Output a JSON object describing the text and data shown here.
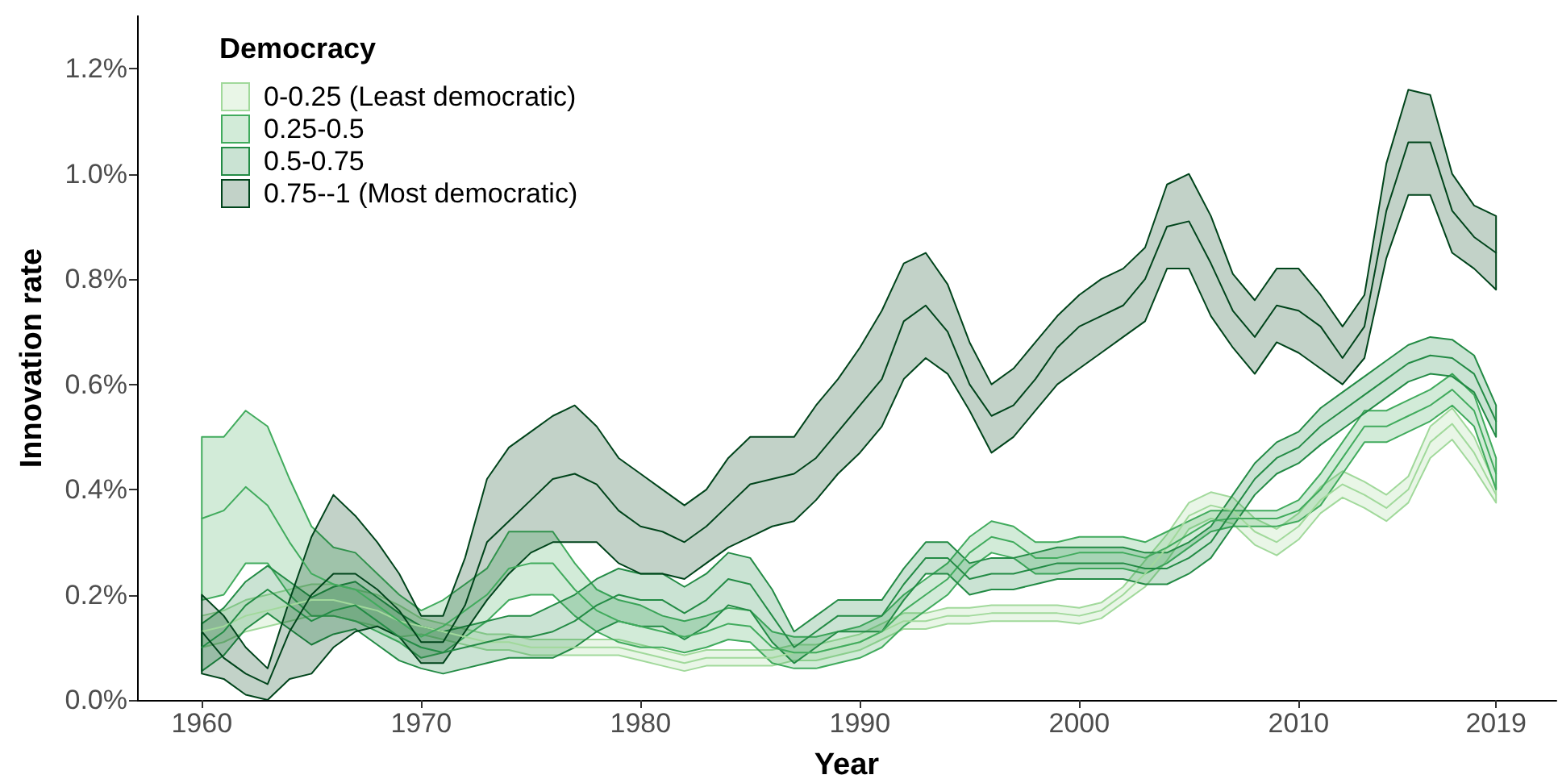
{
  "chart_data": {
    "type": "line",
    "xlabel": "Year",
    "ylabel": "Innovation rate",
    "legend_title": "Democracy",
    "x": [
      1960,
      1961,
      1962,
      1963,
      1964,
      1965,
      1966,
      1967,
      1968,
      1969,
      1970,
      1971,
      1972,
      1973,
      1974,
      1975,
      1976,
      1977,
      1978,
      1979,
      1980,
      1981,
      1982,
      1983,
      1984,
      1985,
      1986,
      1987,
      1988,
      1989,
      1990,
      1991,
      1992,
      1993,
      1994,
      1995,
      1996,
      1997,
      1998,
      1999,
      2000,
      2001,
      2002,
      2003,
      2004,
      2005,
      2006,
      2007,
      2008,
      2009,
      2010,
      2011,
      2012,
      2013,
      2014,
      2015,
      2016,
      2017,
      2018,
      2019
    ],
    "xlim": [
      1957.05,
      2021.75
    ],
    "xticks": [
      1960,
      1970,
      1980,
      1990,
      2000,
      2010,
      2019
    ],
    "ylim": [
      0,
      1.3
    ],
    "yticks": [
      {
        "value": 0,
        "label": "0.0%"
      },
      {
        "value": 0.2,
        "label": "0.2%"
      },
      {
        "value": 0.4,
        "label": "0.4%"
      },
      {
        "value": 0.6,
        "label": "0.6%"
      },
      {
        "value": 0.8,
        "label": "0.8%"
      },
      {
        "value": 1.0,
        "label": "1.0%"
      },
      {
        "value": 1.2,
        "label": "1.2%"
      }
    ],
    "grid": false,
    "legend": "top left",
    "marker": "none",
    "line_style": "solid",
    "series": [
      {
        "name": "0-0.25 (Least democratic)",
        "color": "#a1d99b",
        "values": [
          0.13,
          0.14,
          0.16,
          0.17,
          0.18,
          0.19,
          0.19,
          0.18,
          0.17,
          0.15,
          0.14,
          0.13,
          0.12,
          0.11,
          0.11,
          0.1,
          0.1,
          0.1,
          0.1,
          0.1,
          0.09,
          0.08,
          0.07,
          0.08,
          0.08,
          0.08,
          0.08,
          0.09,
          0.09,
          0.1,
          0.11,
          0.13,
          0.15,
          0.15,
          0.16,
          0.16,
          0.165,
          0.165,
          0.165,
          0.165,
          0.16,
          0.17,
          0.2,
          0.24,
          0.29,
          0.35,
          0.37,
          0.36,
          0.32,
          0.3,
          0.33,
          0.38,
          0.41,
          0.39,
          0.365,
          0.4,
          0.49,
          0.525,
          0.47,
          0.39
        ],
        "lower": [
          0.1,
          0.11,
          0.13,
          0.14,
          0.15,
          0.16,
          0.16,
          0.15,
          0.14,
          0.12,
          0.125,
          0.115,
          0.105,
          0.095,
          0.095,
          0.085,
          0.085,
          0.085,
          0.085,
          0.085,
          0.075,
          0.065,
          0.055,
          0.065,
          0.065,
          0.065,
          0.065,
          0.075,
          0.075,
          0.085,
          0.095,
          0.115,
          0.135,
          0.135,
          0.145,
          0.145,
          0.15,
          0.15,
          0.15,
          0.15,
          0.145,
          0.155,
          0.185,
          0.215,
          0.265,
          0.325,
          0.345,
          0.335,
          0.295,
          0.275,
          0.305,
          0.355,
          0.385,
          0.365,
          0.34,
          0.375,
          0.46,
          0.495,
          0.44,
          0.375
        ],
        "upper": [
          0.16,
          0.17,
          0.19,
          0.2,
          0.21,
          0.22,
          0.22,
          0.21,
          0.2,
          0.18,
          0.155,
          0.145,
          0.135,
          0.125,
          0.125,
          0.115,
          0.115,
          0.115,
          0.115,
          0.115,
          0.105,
          0.095,
          0.085,
          0.095,
          0.095,
          0.095,
          0.095,
          0.105,
          0.105,
          0.115,
          0.125,
          0.145,
          0.165,
          0.165,
          0.175,
          0.175,
          0.18,
          0.18,
          0.18,
          0.18,
          0.175,
          0.185,
          0.215,
          0.265,
          0.315,
          0.375,
          0.395,
          0.385,
          0.345,
          0.325,
          0.355,
          0.405,
          0.435,
          0.415,
          0.39,
          0.425,
          0.52,
          0.555,
          0.5,
          0.405
        ]
      },
      {
        "name": "0.25-0.5",
        "color": "#41ab5d",
        "values": [
          0.345,
          0.36,
          0.405,
          0.37,
          0.3,
          0.24,
          0.22,
          0.21,
          0.18,
          0.15,
          0.12,
          0.14,
          0.17,
          0.2,
          0.25,
          0.26,
          0.26,
          0.21,
          0.17,
          0.15,
          0.14,
          0.13,
          0.12,
          0.13,
          0.145,
          0.14,
          0.1,
          0.09,
          0.09,
          0.1,
          0.11,
          0.13,
          0.17,
          0.2,
          0.23,
          0.28,
          0.31,
          0.3,
          0.27,
          0.27,
          0.28,
          0.28,
          0.28,
          0.27,
          0.29,
          0.315,
          0.34,
          0.345,
          0.345,
          0.345,
          0.36,
          0.4,
          0.46,
          0.52,
          0.52,
          0.54,
          0.56,
          0.59,
          0.55,
          0.43
        ],
        "lower": [
          0.19,
          0.2,
          0.26,
          0.26,
          0.2,
          0.16,
          0.16,
          0.15,
          0.13,
          0.11,
          0.08,
          0.09,
          0.12,
          0.15,
          0.19,
          0.2,
          0.2,
          0.16,
          0.13,
          0.11,
          0.1,
          0.1,
          0.09,
          0.1,
          0.115,
          0.11,
          0.07,
          0.06,
          0.06,
          0.07,
          0.08,
          0.1,
          0.14,
          0.17,
          0.2,
          0.25,
          0.28,
          0.27,
          0.24,
          0.24,
          0.25,
          0.25,
          0.25,
          0.24,
          0.26,
          0.29,
          0.32,
          0.33,
          0.33,
          0.33,
          0.34,
          0.37,
          0.43,
          0.49,
          0.49,
          0.51,
          0.53,
          0.56,
          0.52,
          0.4
        ],
        "upper": [
          0.5,
          0.5,
          0.55,
          0.52,
          0.42,
          0.33,
          0.29,
          0.28,
          0.24,
          0.2,
          0.17,
          0.19,
          0.22,
          0.25,
          0.32,
          0.32,
          0.32,
          0.26,
          0.21,
          0.19,
          0.18,
          0.16,
          0.15,
          0.16,
          0.175,
          0.17,
          0.13,
          0.12,
          0.12,
          0.13,
          0.14,
          0.16,
          0.2,
          0.23,
          0.26,
          0.31,
          0.34,
          0.33,
          0.3,
          0.3,
          0.31,
          0.31,
          0.31,
          0.3,
          0.32,
          0.34,
          0.36,
          0.36,
          0.36,
          0.36,
          0.38,
          0.43,
          0.49,
          0.55,
          0.55,
          0.57,
          0.59,
          0.62,
          0.58,
          0.46
        ]
      },
      {
        "name": "0.5-0.75",
        "color": "#238b45",
        "values": [
          0.1,
          0.13,
          0.18,
          0.21,
          0.18,
          0.15,
          0.17,
          0.18,
          0.15,
          0.12,
          0.1,
          0.09,
          0.1,
          0.11,
          0.12,
          0.12,
          0.13,
          0.15,
          0.18,
          0.2,
          0.19,
          0.19,
          0.165,
          0.19,
          0.23,
          0.22,
          0.16,
          0.1,
          0.13,
          0.16,
          0.16,
          0.16,
          0.22,
          0.27,
          0.27,
          0.23,
          0.24,
          0.24,
          0.25,
          0.26,
          0.26,
          0.26,
          0.26,
          0.25,
          0.25,
          0.27,
          0.3,
          0.36,
          0.42,
          0.46,
          0.48,
          0.52,
          0.55,
          0.58,
          0.61,
          0.64,
          0.655,
          0.65,
          0.62,
          0.53
        ],
        "lower": [
          0.055,
          0.085,
          0.135,
          0.165,
          0.135,
          0.105,
          0.125,
          0.135,
          0.105,
          0.075,
          0.06,
          0.05,
          0.06,
          0.07,
          0.08,
          0.08,
          0.08,
          0.1,
          0.13,
          0.15,
          0.14,
          0.14,
          0.115,
          0.14,
          0.18,
          0.17,
          0.11,
          0.07,
          0.1,
          0.13,
          0.13,
          0.13,
          0.19,
          0.24,
          0.24,
          0.2,
          0.21,
          0.21,
          0.22,
          0.23,
          0.23,
          0.23,
          0.23,
          0.22,
          0.22,
          0.24,
          0.27,
          0.33,
          0.39,
          0.43,
          0.45,
          0.485,
          0.515,
          0.545,
          0.575,
          0.605,
          0.62,
          0.615,
          0.585,
          0.5
        ],
        "upper": [
          0.145,
          0.175,
          0.225,
          0.255,
          0.225,
          0.195,
          0.215,
          0.225,
          0.195,
          0.165,
          0.14,
          0.13,
          0.14,
          0.15,
          0.16,
          0.16,
          0.18,
          0.2,
          0.23,
          0.25,
          0.24,
          0.24,
          0.215,
          0.24,
          0.28,
          0.27,
          0.21,
          0.13,
          0.16,
          0.19,
          0.19,
          0.19,
          0.25,
          0.3,
          0.3,
          0.26,
          0.27,
          0.27,
          0.28,
          0.29,
          0.29,
          0.29,
          0.29,
          0.28,
          0.28,
          0.3,
          0.33,
          0.39,
          0.45,
          0.49,
          0.51,
          0.555,
          0.585,
          0.615,
          0.645,
          0.675,
          0.69,
          0.685,
          0.655,
          0.56
        ]
      },
      {
        "name": "0.75--1 (Most democratic)",
        "color": "#00441b",
        "values": [
          0.13,
          0.08,
          0.05,
          0.03,
          0.13,
          0.2,
          0.24,
          0.24,
          0.21,
          0.17,
          0.11,
          0.11,
          0.18,
          0.3,
          0.34,
          0.38,
          0.42,
          0.43,
          0.41,
          0.36,
          0.33,
          0.32,
          0.3,
          0.33,
          0.37,
          0.41,
          0.42,
          0.43,
          0.46,
          0.51,
          0.56,
          0.61,
          0.72,
          0.75,
          0.7,
          0.6,
          0.54,
          0.56,
          0.61,
          0.67,
          0.71,
          0.73,
          0.75,
          0.8,
          0.9,
          0.91,
          0.83,
          0.74,
          0.69,
          0.75,
          0.74,
          0.71,
          0.65,
          0.71,
          0.93,
          1.06,
          1.06,
          0.93,
          0.88,
          0.85
        ],
        "lower": [
          0.05,
          0.04,
          0.01,
          0.0,
          0.04,
          0.05,
          0.1,
          0.13,
          0.14,
          0.12,
          0.07,
          0.07,
          0.13,
          0.19,
          0.24,
          0.28,
          0.3,
          0.3,
          0.3,
          0.26,
          0.24,
          0.24,
          0.23,
          0.26,
          0.29,
          0.31,
          0.33,
          0.34,
          0.38,
          0.43,
          0.47,
          0.52,
          0.61,
          0.65,
          0.62,
          0.55,
          0.47,
          0.5,
          0.55,
          0.6,
          0.63,
          0.66,
          0.69,
          0.72,
          0.82,
          0.82,
          0.73,
          0.67,
          0.62,
          0.68,
          0.66,
          0.63,
          0.6,
          0.65,
          0.84,
          0.96,
          0.96,
          0.85,
          0.82,
          0.78
        ],
        "upper": [
          0.2,
          0.16,
          0.1,
          0.06,
          0.19,
          0.31,
          0.39,
          0.35,
          0.3,
          0.24,
          0.16,
          0.16,
          0.27,
          0.42,
          0.48,
          0.51,
          0.54,
          0.56,
          0.52,
          0.46,
          0.43,
          0.4,
          0.37,
          0.4,
          0.46,
          0.5,
          0.5,
          0.5,
          0.56,
          0.61,
          0.67,
          0.74,
          0.83,
          0.85,
          0.79,
          0.68,
          0.6,
          0.63,
          0.68,
          0.73,
          0.77,
          0.8,
          0.82,
          0.86,
          0.98,
          1.0,
          0.92,
          0.81,
          0.76,
          0.82,
          0.82,
          0.77,
          0.71,
          0.77,
          1.02,
          1.16,
          1.15,
          1.0,
          0.94,
          0.92
        ]
      }
    ]
  }
}
